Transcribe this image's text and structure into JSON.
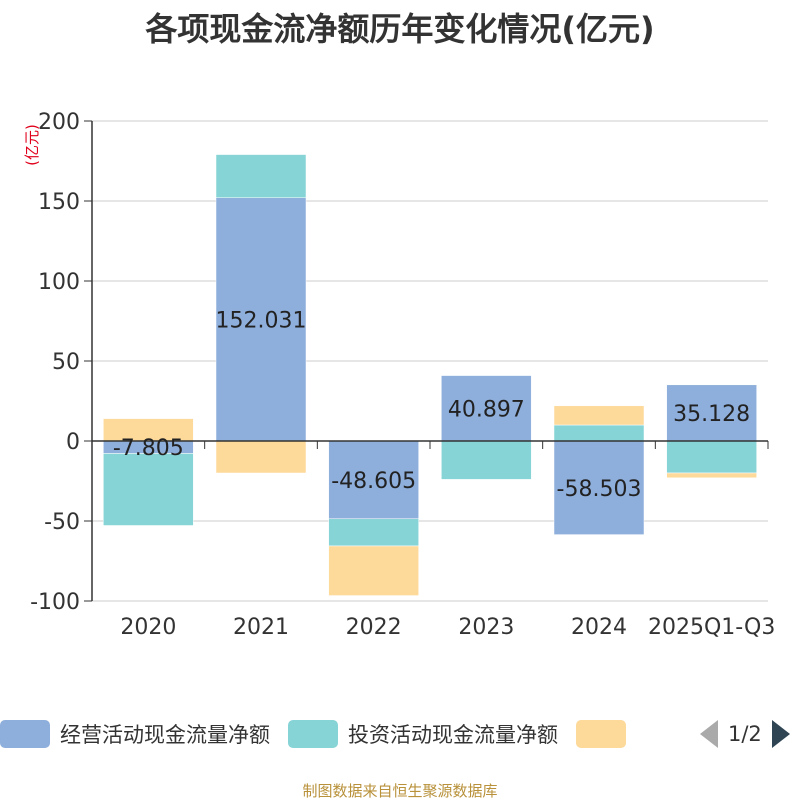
{
  "chart_data": {
    "type": "bar",
    "stacked": true,
    "title": "各项现金流净额历年变化情况(亿元)",
    "ylabel": "(亿元)",
    "xlabel": "",
    "ylim": [
      -100,
      200
    ],
    "yticks": [
      200,
      150,
      100,
      50,
      0,
      -50,
      -100
    ],
    "categories": [
      "2020",
      "2021",
      "2022",
      "2023",
      "2024",
      "2025Q1-Q3"
    ],
    "series": [
      {
        "name": "经营活动现金流量净额",
        "color": "#8eaedb",
        "values": [
          -7.805,
          152.031,
          -48.605,
          40.897,
          -58.503,
          35.128
        ],
        "labels": [
          "-7.805",
          "152.031",
          "-48.605",
          "40.897",
          "-58.503",
          "35.128"
        ]
      },
      {
        "name": "投资活动现金流量净额",
        "color": "#86d4d6",
        "values": [
          -45,
          27,
          -17,
          -24,
          10,
          -20
        ]
      },
      {
        "name": "",
        "color": "#fdd99a",
        "values": [
          14,
          -20,
          -31,
          0,
          12,
          -3
        ]
      }
    ],
    "legend_position": "bottom-left"
  },
  "legend": {
    "pager": "1/2"
  },
  "source": "制图数据来自恒生聚源数据库"
}
